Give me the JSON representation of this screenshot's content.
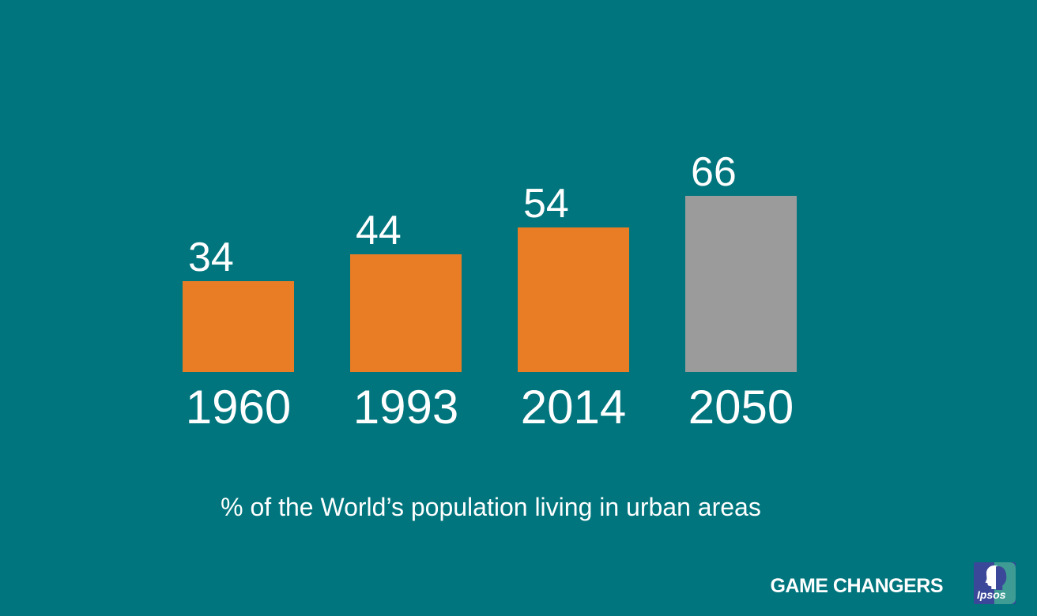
{
  "slide": {
    "background_color": "#00757D",
    "text_color": "#FFFFFF"
  },
  "chart_data": {
    "type": "bar",
    "title": "% of the World’s population living in urban areas",
    "categories": [
      "1960",
      "1993",
      "2014",
      "2050"
    ],
    "values": [
      34,
      44,
      54,
      66
    ],
    "bar_colors": [
      "#E87D26",
      "#E87D26",
      "#E87D26",
      "#9B9B9B"
    ],
    "xlabel": "",
    "ylabel": "",
    "ylim": [
      0,
      70
    ],
    "grid": false,
    "axes_shown": false,
    "legend_position": "none",
    "value_labels_position": "above bars",
    "note": "2050 projection bar shown in gray; historical bars in orange"
  },
  "footer": {
    "tagline": "GAME CHANGERS",
    "logo_text": "Ipsos",
    "logo_colors": {
      "blue": "#3B4798",
      "teal": "#3F9C94",
      "text": "#FFFFFF"
    }
  }
}
